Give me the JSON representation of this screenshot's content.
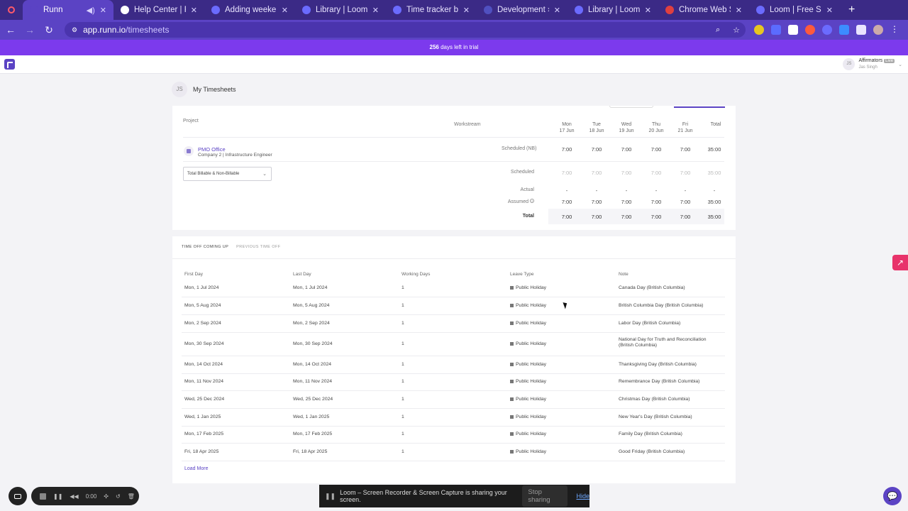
{
  "browser": {
    "tabs": [
      {
        "label": "Runn",
        "active": true,
        "favicon_color": "#5b43c4"
      },
      {
        "label": "Help Center | Runn",
        "favicon_color": "#ffffff"
      },
      {
        "label": "Adding weekend actu",
        "favicon_color": "#6b6bff"
      },
      {
        "label": "Library | Loom",
        "favicon_color": "#6b6bff"
      },
      {
        "label": "Time tracker bug",
        "favicon_color": "#6b6bff"
      },
      {
        "label": "Development › All iss",
        "favicon_color": "#5050c0"
      },
      {
        "label": "Library | Loom",
        "favicon_color": "#6b6bff"
      },
      {
        "label": "Chrome Web Store - ",
        "favicon_color": "#e04040"
      },
      {
        "label": "Loom | Free Screen & ",
        "favicon_color": "#6b6bff"
      }
    ],
    "url_host": "app.runn.io",
    "url_path": "/timesheets"
  },
  "trial": {
    "days": "256",
    "text": "days left in trial"
  },
  "user": {
    "initials": "JS",
    "name": "Affirmators",
    "badge": "Live",
    "sub": "Jas Singh"
  },
  "page": {
    "initials": "JS",
    "title": "My Timesheets"
  },
  "timesheet": {
    "col_project": "Project",
    "col_workstream": "Workstream",
    "days": [
      {
        "day": "Mon",
        "date": "17 Jun"
      },
      {
        "day": "Tue",
        "date": "18 Jun"
      },
      {
        "day": "Wed",
        "date": "19 Jun"
      },
      {
        "day": "Thu",
        "date": "20 Jun"
      },
      {
        "day": "Fri",
        "date": "21 Jun"
      }
    ],
    "col_total": "Total",
    "project": {
      "name": "PMO Office",
      "sub": "Company 2 | Infrastructure Engineer",
      "label": "Scheduled (NB)",
      "values": [
        "7:00",
        "7:00",
        "7:00",
        "7:00",
        "7:00",
        "35:00"
      ]
    },
    "filter": "Total Billable & Non-Billable",
    "rows": [
      {
        "label": "Scheduled",
        "values": [
          "7:00",
          "7:00",
          "7:00",
          "7:00",
          "7:00",
          "35:00"
        ],
        "light": true
      },
      {
        "label": "Actual",
        "values": [
          "-",
          "-",
          "-",
          "-",
          "-",
          "-"
        ],
        "light": false
      },
      {
        "label": "Assumed",
        "values": [
          "7:00",
          "7:00",
          "7:00",
          "7:00",
          "7:00",
          "35:00"
        ],
        "light": false
      },
      {
        "label": "Total",
        "values": [
          "7:00",
          "7:00",
          "7:00",
          "7:00",
          "7:00",
          "35:00"
        ],
        "light": false
      }
    ]
  },
  "timeoff": {
    "tabs": [
      "TIME OFF COMING UP",
      "PREVIOUS TIME OFF"
    ],
    "headers": [
      "First Day",
      "Last Day",
      "Working Days",
      "Leave Type",
      "Note"
    ],
    "rows": [
      [
        "Mon, 1 Jul 2024",
        "Mon, 1 Jul 2024",
        "1",
        "Public Holiday",
        "Canada Day (British Columbia)"
      ],
      [
        "Mon, 5 Aug 2024",
        "Mon, 5 Aug 2024",
        "1",
        "Public Holiday",
        "British Columbia Day (British Columbia)"
      ],
      [
        "Mon, 2 Sep 2024",
        "Mon, 2 Sep 2024",
        "1",
        "Public Holiday",
        "Labor Day (British Columbia)"
      ],
      [
        "Mon, 30 Sep 2024",
        "Mon, 30 Sep 2024",
        "1",
        "Public Holiday",
        "National Day for Truth and Reconciliation (British Columbia)"
      ],
      [
        "Mon, 14 Oct 2024",
        "Mon, 14 Oct 2024",
        "1",
        "Public Holiday",
        "Thanksgiving Day (British Columbia)"
      ],
      [
        "Mon, 11 Nov 2024",
        "Mon, 11 Nov 2024",
        "1",
        "Public Holiday",
        "Remembrance Day (British Columbia)"
      ],
      [
        "Wed, 25 Dec 2024",
        "Wed, 25 Dec 2024",
        "1",
        "Public Holiday",
        "Christmas Day (British Columbia)"
      ],
      [
        "Wed, 1 Jan 2025",
        "Wed, 1 Jan 2025",
        "1",
        "Public Holiday",
        "New Year's Day (British Columbia)"
      ],
      [
        "Mon, 17 Feb 2025",
        "Mon, 17 Feb 2025",
        "1",
        "Public Holiday",
        "Family Day (British Columbia)"
      ],
      [
        "Fri, 18 Apr 2025",
        "Fri, 18 Apr 2025",
        "1",
        "Public Holiday",
        "Good Friday (British Columbia)"
      ]
    ],
    "load_more": "Load More"
  },
  "loom": {
    "timer": "0:00",
    "share_text": "Loom – Screen Recorder & Screen Capture is sharing your screen.",
    "stop_label": "Stop sharing",
    "hide_label": "Hide"
  }
}
